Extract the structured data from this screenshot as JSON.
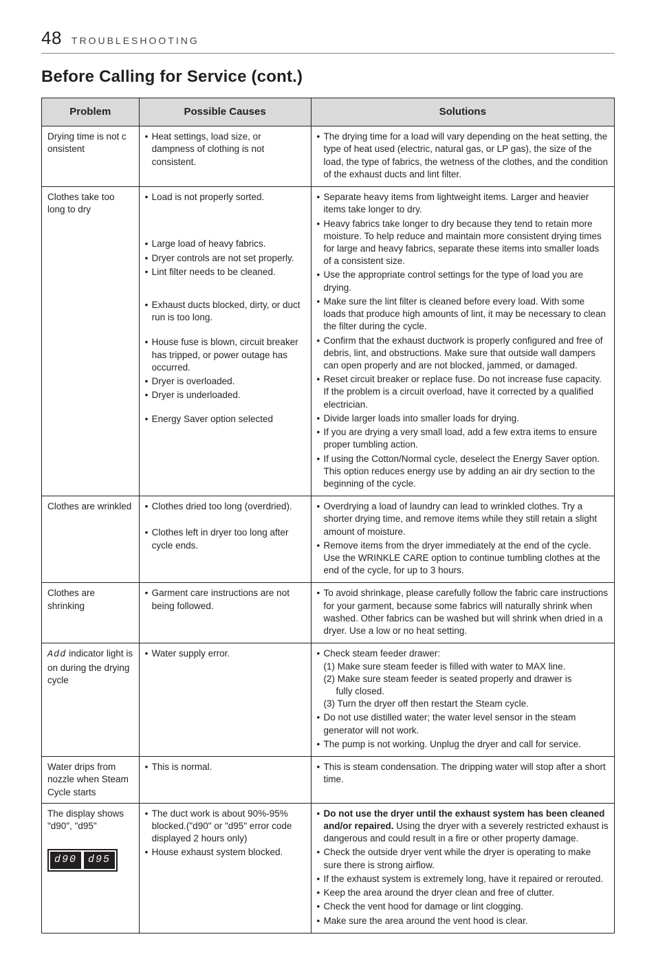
{
  "header": {
    "page_num": "48",
    "section": "TROUBLESHOOTING"
  },
  "title": "Before Calling for Service (cont.)",
  "table": {
    "headers": {
      "problem": "Problem",
      "causes": "Possible Causes",
      "solutions": "Solutions"
    },
    "rows": [
      {
        "problem": "Drying time is not c onsistent",
        "causes": [
          "Heat settings, load size, or dampness of clothing is not consistent."
        ],
        "solutions": [
          "The drying time for a load will vary depending on the heat setting, the type of heat used (electric, natural gas, or LP gas), the size of the load, the type of fabrics, the wetness of the clothes, and the condition of the exhaust ducts and lint filter."
        ]
      },
      {
        "problem": "Clothes take too long to dry",
        "causes": [
          "Load is not properly sorted.",
          "Large load of heavy fabrics.",
          "Dryer controls are not set properly.",
          "Lint filter needs to be cleaned.",
          "Exhaust ducts blocked, dirty, or duct run is too long.",
          "House fuse is blown, circuit breaker has tripped, or power outage has occurred.",
          "Dryer is overloaded.",
          "Dryer is underloaded.",
          "Energy Saver option selected"
        ],
        "cause_spacing": [
          0,
          50,
          0,
          0,
          30,
          18,
          0,
          0,
          16
        ],
        "solutions": [
          "Separate heavy items from lightweight items. Larger and heavier items take longer to dry.",
          "Heavy fabrics take longer to dry because they tend to retain more moisture. To help reduce and maintain more consistent drying times for large and heavy fabrics, separate these items into smaller loads of a consistent size.",
          "Use the appropriate control settings for the type of load you are drying.",
          "Make sure the lint filter is cleaned before every load. With some loads that produce high amounts of lint, it may be necessary to clean the filter during the cycle.",
          "Confirm that the exhaust ductwork is properly configured and free of debris, lint, and obstructions. Make sure that outside wall dampers can open properly and are not blocked, jammed, or damaged.",
          "Reset circuit breaker or replace fuse. Do not increase fuse capacity. If the problem is a circuit overload, have it corrected by a qualified electrician.",
          "Divide larger loads into smaller loads for drying.",
          "If you are drying a very small load, add a few extra items to ensure proper tumbling action.",
          "If using the Cotton/Normal cycle, deselect the Energy Saver option. This option reduces energy use by adding an air dry section to the beginning of the cycle."
        ]
      },
      {
        "problem": "Clothes are wrinkled",
        "causes": [
          "Clothes dried too long (overdried).",
          "Clothes left in dryer too long after cycle  ends."
        ],
        "cause_spacing": [
          0,
          20
        ],
        "solutions": [
          "Overdrying a load of laundry can lead to wrinkled clothes. Try a shorter drying time, and remove items while they still retain a slight amount of moisture.",
          "Remove items from the dryer immediately at the end of the cycle. Use the WRINKLE CARE option to continue tumbling clothes at the end of the cycle, for up to 3 hours."
        ]
      },
      {
        "problem": "Clothes are shrinking",
        "causes": [
          "Garment care instructions are not being followed."
        ],
        "solutions": [
          "To avoid shrinkage, please carefully follow the fabric care instructions for your garment, because some fabrics will naturally shrink when washed. Other fabrics can be washed but will shrink when dried in a dryer. Use a low or no heat setting."
        ]
      },
      {
        "problem_html": "<span class=\"seg7\">Add</span> indicator light is on during the drying cycle",
        "causes": [
          "Water supply error."
        ],
        "solutions_html": [
          "Check steam feeder drawer:<br>(1) Make sure steam feeder is filled with water to MAX line.<br>(2) Make sure steam feeder is seated properly and drawer is <span class=\"indent\">fully closed.</span>(3) Turn the dryer off then restart the Steam cycle.",
          "Do not use distilled water; the water level sensor in the steam generator will not work.",
          "The pump is not working. Unplug the dryer and call for service."
        ]
      },
      {
        "problem": "Water drips from nozzle when Steam Cycle starts",
        "causes": [
          "This is normal."
        ],
        "solutions": [
          "This is steam condensation. The dripping water will stop after a short time."
        ]
      },
      {
        "problem_html": "The display shows \"d90\", \"d95\"<br><br><span class=\"display-box\"><span class=\"cell\">d90</span><span class=\"cell\">d95</span></span>",
        "causes": [
          "The duct work is about 90%-95% blocked.(\"d90\" or \"d95\" error code displayed 2 hours only)",
          "House exhaust system blocked."
        ],
        "solutions_html": [
          "<span class=\"bold\">Do not use the dryer until the exhaust system has been cleaned and/or repaired.</span> Using the dryer with a severely restricted exhaust is dangerous and could result in a fire or other property damage.",
          "Check the outside dryer vent while the dryer is operating to make sure  there is strong airflow.",
          "If the exhaust system is extremely long, have it repaired or rerouted.",
          "Keep the area around the dryer clean and free of clutter.",
          "Check the vent hood for damage or lint clogging.",
          "Make sure the area around the vent hood is clear."
        ]
      }
    ]
  }
}
